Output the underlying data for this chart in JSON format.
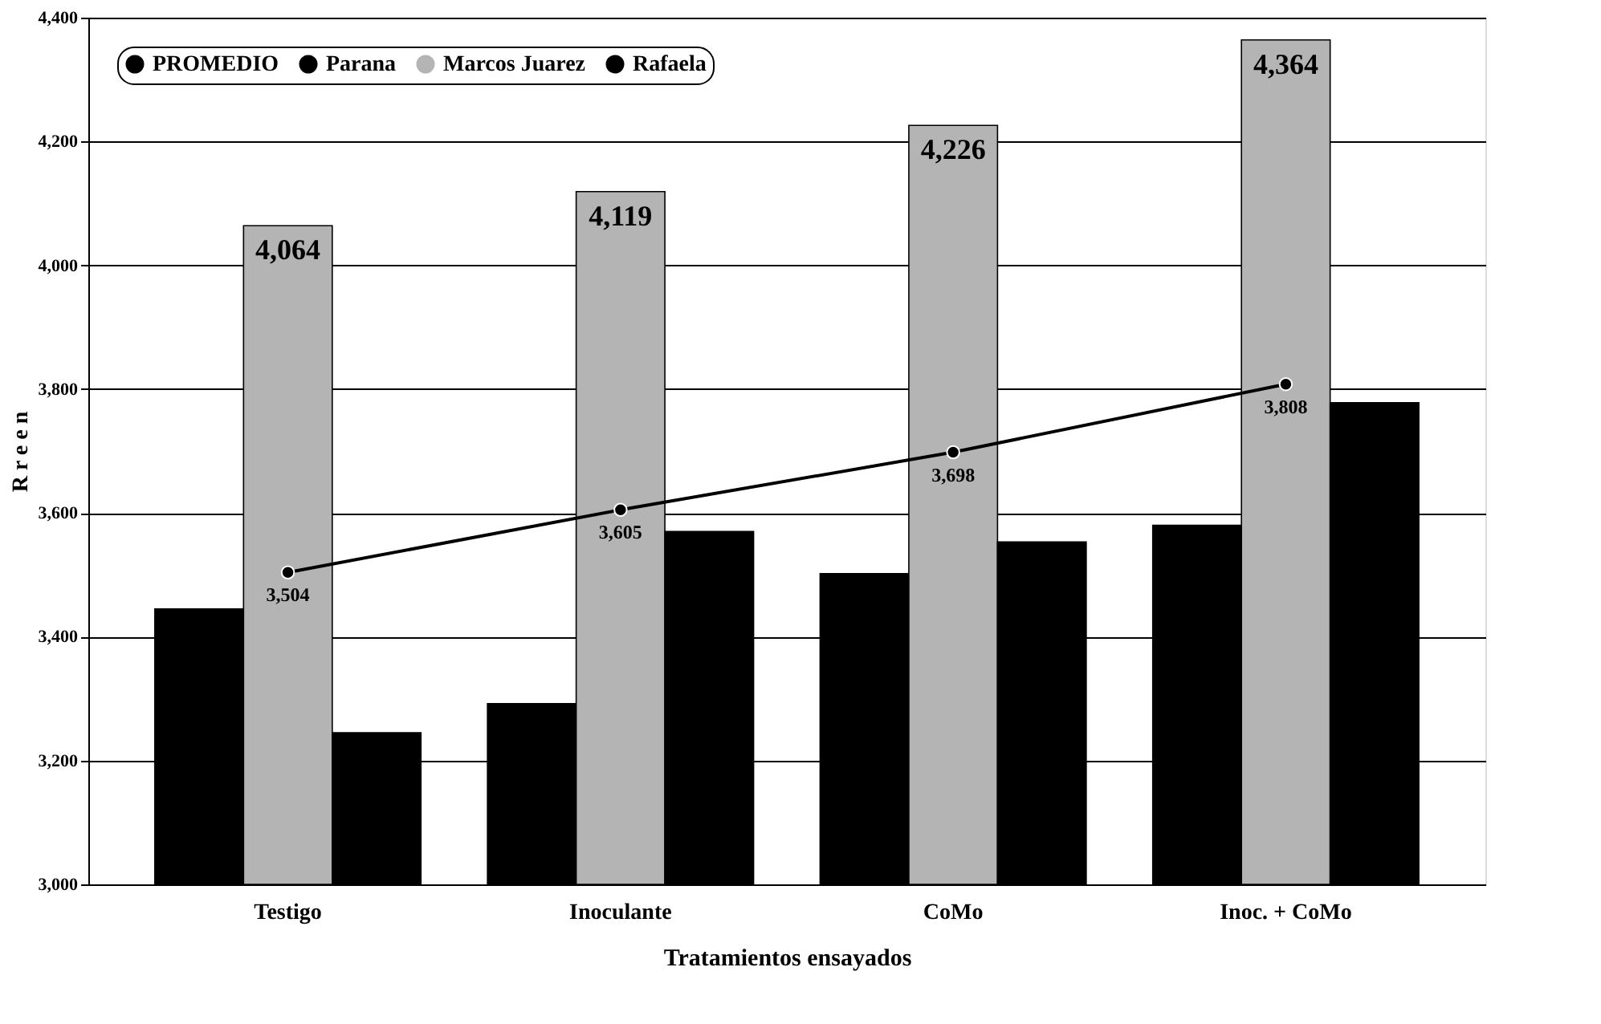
{
  "chart_data": {
    "type": "bar",
    "xlabel": "Tratamientos ensayados",
    "ylabel": "R r e e n",
    "categories": [
      "Testigo",
      "Inoculante",
      "CoMo",
      "Inoc. + CoMo"
    ],
    "series": [
      {
        "name": "PROMEDIO",
        "type": "line",
        "color": "#000000",
        "marker": "circle",
        "values": [
          3504,
          3605,
          3698,
          3808
        ],
        "value_labels": [
          "3,504",
          "3,605",
          "3,698",
          "3,808"
        ]
      },
      {
        "name": "Parana",
        "color": "#000000",
        "values": [
          3445,
          3292,
          3502,
          3580
        ]
      },
      {
        "name": "Marcos Juarez",
        "color": "#b4b4b4",
        "values": [
          4064,
          4119,
          4226,
          4364
        ],
        "value_labels": [
          "4,064",
          "4,119",
          "4,226",
          "4,364"
        ]
      },
      {
        "name": "Rafaela",
        "color": "#000000",
        "values": [
          3245,
          3570,
          3553,
          3778
        ]
      }
    ],
    "ylim": [
      3000,
      4400
    ],
    "yticks": [
      {
        "value": 3000,
        "label": "3,000"
      },
      {
        "value": 3200,
        "label": "3,200"
      },
      {
        "value": 3400,
        "label": "3,400"
      },
      {
        "value": 3600,
        "label": "3,600"
      },
      {
        "value": 3800,
        "label": "3,800"
      },
      {
        "value": 4000,
        "label": "4,000"
      },
      {
        "value": 4200,
        "label": "4,200"
      },
      {
        "value": 4400,
        "label": "4,400"
      }
    ],
    "grid": "y",
    "legend": "top left"
  }
}
